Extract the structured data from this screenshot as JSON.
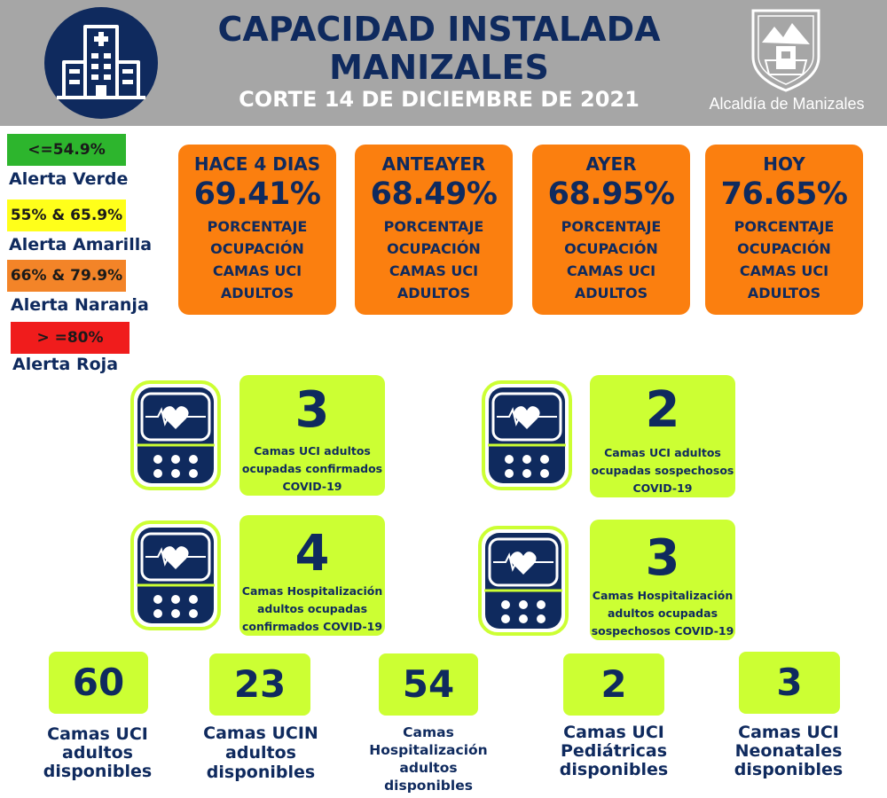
{
  "header": {
    "title_line1": "CAPACIDAD INSTALADA",
    "title_line2": "MANIZALES",
    "subtitle": "CORTE 14 DE DICIEMBRE  DE 2021",
    "org": "Alcaldía de Manizales",
    "icon": "hospital-building-icon"
  },
  "legend": [
    {
      "range": "<=54.9%",
      "label": "Alerta Verde",
      "color": "#2db52d"
    },
    {
      "range": "55% & 65.9%",
      "label": "Alerta Amarilla",
      "color": "#ffff1a"
    },
    {
      "range": "66% & 79.9%",
      "label": "Alerta Naranja",
      "color": "#f38428"
    },
    {
      "range": "> =80%",
      "label": "Alerta Roja",
      "color": "#f01c1c"
    }
  ],
  "occupancy": [
    {
      "period": "HACE 4 DIAS",
      "value": "69.41%",
      "desc": "PORCENTAJE\nOCUPACIÓN\nCAMAS UCI\nADULTOS"
    },
    {
      "period": "ANTEAYER",
      "value": "68.49%",
      "desc": "PORCENTAJE\nOCUPACIÓN\nCAMAS UCI\nADULTOS"
    },
    {
      "period": "AYER",
      "value": "68.95%",
      "desc": "PORCENTAJE\nOCUPACIÓN\nCAMAS UCI\nADULTOS"
    },
    {
      "period": "HOY",
      "value": "76.65%",
      "desc": "PORCENTAJE\nOCUPACIÓN\nCAMAS UCI\nADULTOS"
    }
  ],
  "covid_beds": [
    {
      "value": "3",
      "caption": "Camas UCI adultos\nocupadas confirmados\nCOVID-19",
      "icon": "heart-monitor-icon"
    },
    {
      "value": "2",
      "caption": "Camas UCI adultos\nocupadas sospechosos\nCOVID-19",
      "icon": "heart-monitor-icon"
    },
    {
      "value": "4",
      "caption": "Camas  Hospitalización\nadultos ocupadas\nconfirmados COVID-19",
      "icon": "heart-monitor-icon"
    },
    {
      "value": "3",
      "caption": "Camas  Hospitalización\nadultos ocupadas\nsospechosos COVID-19",
      "icon": "heart-monitor-icon"
    }
  ],
  "available": [
    {
      "value": "60",
      "label": "Camas UCI\nadultos\ndisponibles"
    },
    {
      "value": "23",
      "label": "Camas UCIN\nadultos\ndisponibles"
    },
    {
      "value": "54",
      "label": "Camas\nHospitalización\nadultos\ndisponibles"
    },
    {
      "value": "2",
      "label": "Camas  UCI\nPediátricas\ndisponibles"
    },
    {
      "value": "3",
      "label": "Camas  UCI\nNeonatales\ndisponibles"
    }
  ],
  "colors": {
    "navy": "#0f2a5e",
    "orange": "#fb7f0f",
    "lime": "#ccff33",
    "header_gray": "#a6a6a6"
  }
}
